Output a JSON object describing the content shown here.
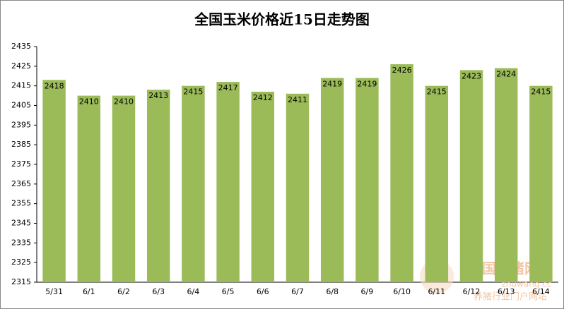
{
  "chart_data": {
    "type": "bar",
    "title": "全国玉米价格近15日走势图",
    "categories": [
      "5/31",
      "6/1",
      "6/2",
      "6/3",
      "6/4",
      "6/5",
      "6/6",
      "6/7",
      "6/8",
      "6/9",
      "6/10",
      "6/11",
      "6/12",
      "6/13",
      "6/14"
    ],
    "values": [
      2418,
      2410,
      2410,
      2413,
      2415,
      2417,
      2412,
      2411,
      2419,
      2419,
      2426,
      2415,
      2423,
      2424,
      2415
    ],
    "color": "#9bbb59",
    "ylim": [
      2315,
      2435
    ],
    "yticks": [
      2315,
      2325,
      2335,
      2345,
      2355,
      2365,
      2375,
      2385,
      2395,
      2405,
      2415,
      2425,
      2435
    ],
    "grid": false,
    "watermark": [
      "中国养猪网",
      "zhuwang.cc",
      "养猪行业门户网站"
    ]
  }
}
